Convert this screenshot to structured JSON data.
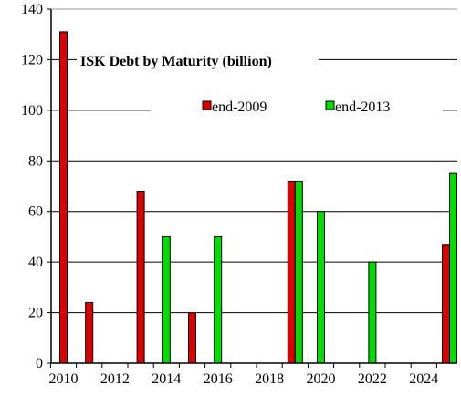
{
  "chart_data": {
    "type": "bar",
    "title": "ISK Debt by Maturity (billion)",
    "xlabel": "",
    "ylabel": "",
    "x_categories": [
      2010,
      2011,
      2012,
      2013,
      2014,
      2015,
      2016,
      2017,
      2018,
      2019,
      2020,
      2021,
      2022,
      2023,
      2024,
      2025
    ],
    "x_tick_labels": [
      "2010",
      "2012",
      "2014",
      "2016",
      "2018",
      "2020",
      "2022",
      "2024"
    ],
    "y_tick_labels": [
      "0",
      "20",
      "40",
      "60",
      "80",
      "100",
      "120",
      "140"
    ],
    "ylim": [
      0,
      140
    ],
    "ytick_step": 20,
    "grid": "horizontal",
    "legend_placement": "top-right inside plot",
    "series": [
      {
        "name": "end-2009",
        "color": "#dd0000",
        "values": [
          131,
          24,
          null,
          68,
          null,
          20,
          null,
          null,
          null,
          72,
          null,
          null,
          null,
          null,
          null,
          47
        ]
      },
      {
        "name": "end-2013",
        "color": "#00dd00",
        "values": [
          null,
          null,
          null,
          null,
          50,
          null,
          50,
          null,
          null,
          72,
          60,
          null,
          40,
          null,
          null,
          75
        ]
      }
    ]
  }
}
